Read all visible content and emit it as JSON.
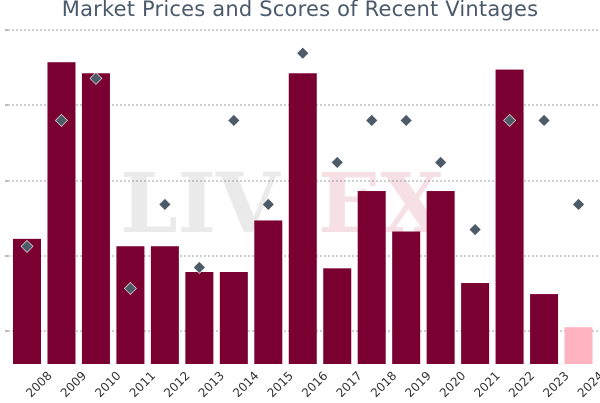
{
  "title": "Market Prices and Scores of Recent Vintages",
  "watermark": "LIVEX",
  "colors": {
    "bar": "#7a0032",
    "bar_light": "#ffb3c1",
    "marker": "#4d5a67",
    "grid": "#9aa0a6",
    "title": "#4a5a6b"
  },
  "chart_data": {
    "type": "bar",
    "title": "Market Prices and Scores of Recent Vintages",
    "xlabel": "",
    "ylabel": "",
    "categories": [
      "2008",
      "2009",
      "2010",
      "2011",
      "2012",
      "2013",
      "2014",
      "2015",
      "2016",
      "2017",
      "2018",
      "2019",
      "2020",
      "2021",
      "2022",
      "2023",
      "2024"
    ],
    "series": [
      {
        "kind": "bar",
        "values": [
          34,
          82,
          79,
          32,
          32,
          25,
          25,
          39,
          79,
          26,
          47,
          36,
          47,
          22,
          80,
          19,
          10
        ],
        "highlight_last": true
      },
      {
        "kind": "scatter",
        "marker": "diamond",
        "values": [
          94,
          97,
          98,
          93,
          95,
          93.5,
          97,
          95,
          98.6,
          96,
          97,
          97,
          96,
          94.4,
          97,
          97,
          95
        ]
      }
    ],
    "gridlines_count": 5,
    "grid": true,
    "legend": "none"
  }
}
